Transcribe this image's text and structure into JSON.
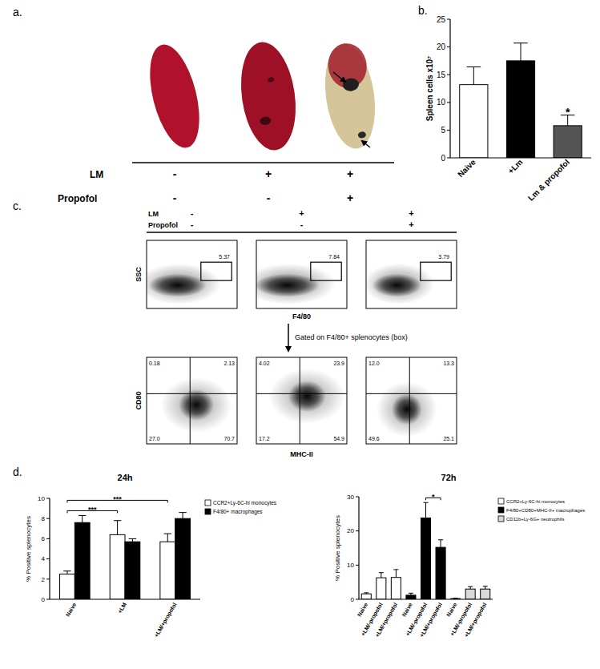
{
  "panel_labels": [
    "a.",
    "b.",
    "c.",
    "d."
  ],
  "panel_a": {
    "rows": [
      {
        "label": "LM",
        "signs": [
          "-",
          "+",
          "+"
        ]
      },
      {
        "label": "Propofol",
        "signs": [
          "-",
          "-",
          "+"
        ]
      }
    ]
  },
  "panel_c": {
    "rows": [
      {
        "label": "LM",
        "signs": [
          "-",
          "+",
          "+"
        ]
      },
      {
        "label": "Propofol",
        "signs": [
          "-",
          "-",
          "+"
        ]
      }
    ],
    "top_plots": {
      "y_label": "SSC",
      "x_label": "F4/80",
      "gate_values": [
        5.37,
        7.84,
        3.79
      ]
    },
    "gating_note": "Gated on F4/80+ splenocytes (box)",
    "bottom_plots": {
      "y_label": "CD80",
      "x_label": "MHC-II",
      "quadrants": [
        [
          0.18,
          2.13,
          {
            "value": 27.0,
            "label": "27.0"
          },
          70.7
        ],
        [
          4.02,
          23.9,
          17.2,
          54.9
        ],
        [
          {
            "value": 12.0,
            "label": "12.0"
          },
          13.3,
          49.6,
          25.1
        ]
      ]
    }
  },
  "chart_data": [
    {
      "type": "bar",
      "y_label": "Spleen cells x10⁷",
      "categories": [
        "Naive",
        "+Lm",
        "Lm & propofol"
      ],
      "values": [
        13.2,
        17.5,
        5.8
      ],
      "errors": [
        3.2,
        3.2,
        1.9
      ],
      "colors": [
        "#ffffff",
        "#000000",
        "#555555"
      ],
      "ylim": [
        0,
        25
      ],
      "yticks": [
        0,
        5,
        10,
        15,
        20,
        25
      ],
      "annotations": [
        {
          "text": "*",
          "category": 2
        }
      ]
    },
    {
      "type": "bar",
      "title": "24h",
      "y_label": "% Positive splenocytes",
      "categories": [
        "Naive",
        "+LM",
        "+LM/+propofol"
      ],
      "series": [
        {
          "name": "CCR2+Ly-6C-hi monocytes",
          "color": "#ffffff",
          "values": [
            2.5,
            6.4,
            5.7
          ],
          "errors": [
            0.3,
            1.4,
            0.8
          ]
        },
        {
          "name": "F4/80+ macrophages",
          "color": "#000000",
          "values": [
            7.6,
            5.7,
            8.0
          ],
          "errors": [
            0.7,
            0.3,
            0.6
          ]
        }
      ],
      "ylim": [
        0,
        10
      ],
      "yticks": [
        0,
        2,
        4,
        6,
        8,
        10
      ],
      "legend": "right",
      "annotations": [
        {
          "text": "***",
          "from": 0,
          "to": 1
        },
        {
          "text": "***",
          "from": 0,
          "to": 2
        }
      ]
    },
    {
      "type": "bar",
      "title": "72h",
      "y_label": "% Positive splenocytes",
      "categories": [
        "Naive",
        "+LM/-propofol",
        "+LM/+propofol",
        "Naive",
        "+LM/-propofol",
        "+LM/+propofol",
        "Naive",
        "+LM/-propofol",
        "+LM/+propofol"
      ],
      "series": [
        {
          "name": "CCR2+Ly-6C-hi monocytes",
          "color": "#ffffff",
          "values": [
            1.6,
            6.3,
            6.4,
            null,
            null,
            null,
            null,
            null,
            null
          ],
          "errors": [
            0.3,
            1.5,
            2.3,
            null,
            null,
            null,
            null,
            null,
            null
          ]
        },
        {
          "name": "F4/80+CD80+MHC-II+ macrophages",
          "color": "#000000",
          "values": [
            null,
            null,
            null,
            1.2,
            23.8,
            15.2,
            null,
            null,
            null
          ],
          "errors": [
            null,
            null,
            null,
            0.6,
            4.5,
            2.2,
            null,
            null,
            null
          ]
        },
        {
          "name": "CD11b+Ly-6G+ neutrophils",
          "color": "#d9d9d9",
          "values": [
            null,
            null,
            null,
            null,
            null,
            null,
            0.2,
            3.0,
            3.0
          ],
          "errors": [
            null,
            null,
            null,
            null,
            null,
            null,
            0.1,
            0.7,
            0.8
          ]
        }
      ],
      "ylim": [
        0,
        30
      ],
      "yticks": [
        0,
        10,
        20,
        30
      ],
      "legend": "right",
      "annotations": [
        {
          "text": "*",
          "from": 4,
          "to": 5
        }
      ]
    }
  ]
}
